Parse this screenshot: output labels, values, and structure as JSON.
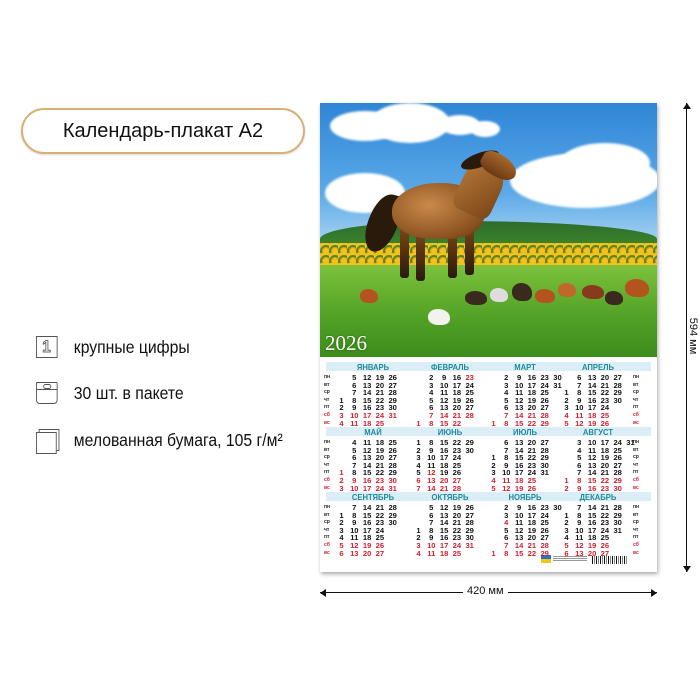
{
  "product_title": "Календарь-плакат А2",
  "features": [
    {
      "icon": "large-digits-icon",
      "label": "крупные цифры"
    },
    {
      "icon": "package-icon",
      "label": "30 шт. в пакете"
    },
    {
      "icon": "paper-sheets-icon",
      "label": "мелованная бумага, 105 г/м²"
    }
  ],
  "dimensions": {
    "height": "594 мм",
    "width": "420 мм"
  },
  "poster": {
    "year": "2026",
    "weekdays": [
      "пн",
      "вт",
      "ср",
      "чт",
      "пт",
      "сб",
      "вс"
    ],
    "months": [
      {
        "name": "ЯНВАРЬ",
        "days": 31,
        "first_weekday": 4
      },
      {
        "name": "ФЕВРАЛЬ",
        "days": 28,
        "first_weekday": 7
      },
      {
        "name": "МАРТ",
        "days": 31,
        "first_weekday": 7
      },
      {
        "name": "АПРЕЛЬ",
        "days": 30,
        "first_weekday": 3
      },
      {
        "name": "МАЙ",
        "days": 31,
        "first_weekday": 5
      },
      {
        "name": "ИЮНЬ",
        "days": 30,
        "first_weekday": 1
      },
      {
        "name": "ИЮЛЬ",
        "days": 31,
        "first_weekday": 3
      },
      {
        "name": "АВГУСТ",
        "days": 31,
        "first_weekday": 6
      },
      {
        "name": "СЕНТЯБРЬ",
        "days": 30,
        "first_weekday": 2
      },
      {
        "name": "ОКТЯБРЬ",
        "days": 31,
        "first_weekday": 4
      },
      {
        "name": "НОЯБРЬ",
        "days": 30,
        "first_weekday": 7
      },
      {
        "name": "ДЕКАБРЬ",
        "days": 31,
        "first_weekday": 2
      }
    ],
    "holidays": [
      [
        2,
        23
      ],
      [
        5,
        1
      ],
      [
        6,
        12
      ],
      [
        11,
        4
      ]
    ],
    "colors": {
      "weekend": "#d1202e",
      "month_name": "#1f8a9a",
      "weekday": "#111111"
    }
  }
}
